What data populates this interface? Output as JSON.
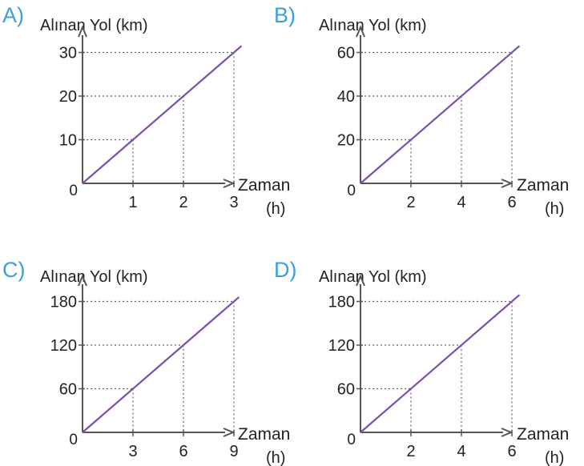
{
  "colors": {
    "option_letter": "#3aa0e0",
    "line": "#7b4fb0",
    "axis": "#555555",
    "guide": "#666666",
    "text": "#222222"
  },
  "chart_data": [
    {
      "type": "line",
      "option": "A)",
      "ylabel": "Alınan Yol (km)",
      "xlabel": "Zaman",
      "xunit": "(h)",
      "origin_label": "0",
      "xticks": [
        1,
        2,
        3
      ],
      "yticks": [
        10,
        20,
        30
      ],
      "guides": [
        [
          1,
          10
        ],
        [
          2,
          20
        ],
        [
          3,
          30
        ]
      ],
      "x": [
        0,
        3.15
      ],
      "y": [
        0,
        31.5
      ]
    },
    {
      "type": "line",
      "option": "B)",
      "ylabel": "Alınan Yol (km)",
      "xlabel": "Zaman",
      "xunit": "(h)",
      "origin_label": "0",
      "xticks": [
        2,
        4,
        6
      ],
      "yticks": [
        20,
        40,
        60
      ],
      "guides": [
        [
          2,
          20
        ],
        [
          4,
          40
        ],
        [
          6,
          60
        ]
      ],
      "x": [
        0,
        6.3
      ],
      "y": [
        0,
        63
      ]
    },
    {
      "type": "line",
      "option": "C)",
      "ylabel": "Alınan Yol (km)",
      "xlabel": "Zaman",
      "xunit": "(h)",
      "origin_label": "0",
      "xticks": [
        3,
        6,
        9
      ],
      "yticks": [
        60,
        120,
        180
      ],
      "guides": [
        [
          3,
          60
        ],
        [
          6,
          120
        ],
        [
          9,
          180
        ]
      ],
      "x": [
        0,
        9.3
      ],
      "y": [
        0,
        186
      ]
    },
    {
      "type": "line",
      "option": "D)",
      "ylabel": "Alınan Yol (km)",
      "xlabel": "Zaman",
      "xunit": "(h)",
      "origin_label": "0",
      "xticks": [
        2,
        4,
        6
      ],
      "yticks": [
        60,
        120,
        180
      ],
      "guides": [
        [
          2,
          60
        ],
        [
          4,
          120
        ],
        [
          6,
          180
        ]
      ],
      "x": [
        0,
        6.3
      ],
      "y": [
        0,
        189
      ]
    }
  ]
}
